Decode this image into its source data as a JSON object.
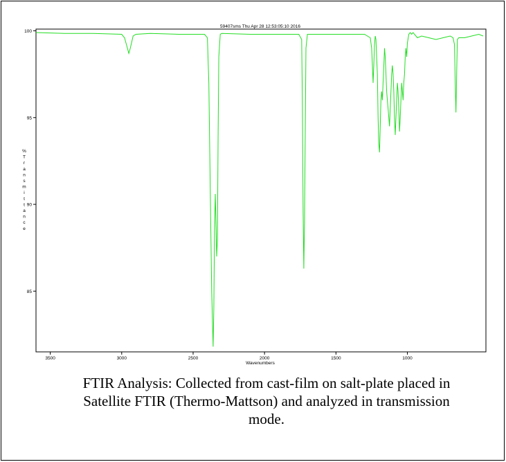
{
  "chart_data": {
    "type": "line",
    "title": "59407sms   Thu Apr 28 12:53:05:10 2016",
    "xlabel": "Wavenumbers",
    "ylabel": "% Transmittance",
    "ylabel_letters": [
      "%",
      "T",
      "r",
      "a",
      "n",
      "s",
      "m",
      "i",
      "t",
      "t",
      "a",
      "n",
      "c",
      "e"
    ],
    "xlim": [
      3600,
      450
    ],
    "ylim": [
      81.5,
      100.1
    ],
    "x_ticks": [
      3500,
      3000,
      2500,
      2000,
      1500,
      1000
    ],
    "x_tick_labels": [
      "3500",
      "3000",
      "2500",
      "2000",
      "1500",
      "1000"
    ],
    "y_ticks": [
      85,
      90,
      95,
      100
    ],
    "y_tick_labels": [
      "85",
      "90",
      "95",
      "100"
    ],
    "grid": false,
    "line_color": "#22dd22",
    "series": [
      {
        "x": [
          3600,
          3400,
          3200,
          3000,
          2980,
          2960,
          2950,
          2940,
          2920,
          2900,
          2800,
          2600,
          2420,
          2400,
          2390,
          2380,
          2370,
          2360,
          2355,
          2350,
          2345,
          2340,
          2335,
          2330,
          2325,
          2320,
          2310,
          2300,
          2100,
          1900,
          1760,
          1740,
          1735,
          1730,
          1725,
          1720,
          1710,
          1700,
          1500,
          1300,
          1260,
          1250,
          1245,
          1240,
          1235,
          1230,
          1225,
          1220,
          1215,
          1210,
          1205,
          1200,
          1195,
          1190,
          1185,
          1180,
          1175,
          1170,
          1165,
          1160,
          1155,
          1150,
          1145,
          1140,
          1135,
          1130,
          1125,
          1120,
          1115,
          1110,
          1105,
          1100,
          1095,
          1090,
          1085,
          1080,
          1075,
          1070,
          1065,
          1060,
          1055,
          1050,
          1045,
          1040,
          1035,
          1030,
          1025,
          1020,
          1015,
          1010,
          1005,
          1000,
          990,
          980,
          970,
          960,
          950,
          940,
          930,
          900,
          850,
          800,
          750,
          700,
          680,
          670,
          665,
          660,
          655,
          650,
          640,
          600,
          550,
          500,
          470
        ],
        "y": [
          99.9,
          99.85,
          99.85,
          99.8,
          99.6,
          99.0,
          98.7,
          99.0,
          99.7,
          99.8,
          99.85,
          99.8,
          99.8,
          99.6,
          97.0,
          91.0,
          85.0,
          81.8,
          84.0,
          88.5,
          90.6,
          89.0,
          87.0,
          88.0,
          94.0,
          98.5,
          99.8,
          99.85,
          99.8,
          99.8,
          99.8,
          99.5,
          96.0,
          89.5,
          86.3,
          89.0,
          99.0,
          99.8,
          99.8,
          99.8,
          99.6,
          99.0,
          98.0,
          97.0,
          98.0,
          99.2,
          99.7,
          99.5,
          98.5,
          97.5,
          95.0,
          93.5,
          93.0,
          94.5,
          96.0,
          96.5,
          96.0,
          97.0,
          98.0,
          99.0,
          98.5,
          97.5,
          96.5,
          96.0,
          95.5,
          95.0,
          94.5,
          95.5,
          96.5,
          97.5,
          98.0,
          97.5,
          96.5,
          95.0,
          94.0,
          95.0,
          96.0,
          97.0,
          96.5,
          95.5,
          94.2,
          95.0,
          96.0,
          97.0,
          96.5,
          96.0,
          97.0,
          97.5,
          98.5,
          99.0,
          98.5,
          99.3,
          99.8,
          99.9,
          99.8,
          99.9,
          99.8,
          99.7,
          99.6,
          99.7,
          99.6,
          99.5,
          99.6,
          99.7,
          99.6,
          99.2,
          97.0,
          95.3,
          97.5,
          99.5,
          99.6,
          99.6,
          99.7,
          99.8,
          99.7
        ]
      }
    ]
  },
  "caption": {
    "line1": "FTIR Analysis: Collected from cast-film on salt-plate placed in",
    "line2": "Satellite FTIR (Thermo-Mattson) and analyzed in transmission",
    "line3": "mode."
  }
}
